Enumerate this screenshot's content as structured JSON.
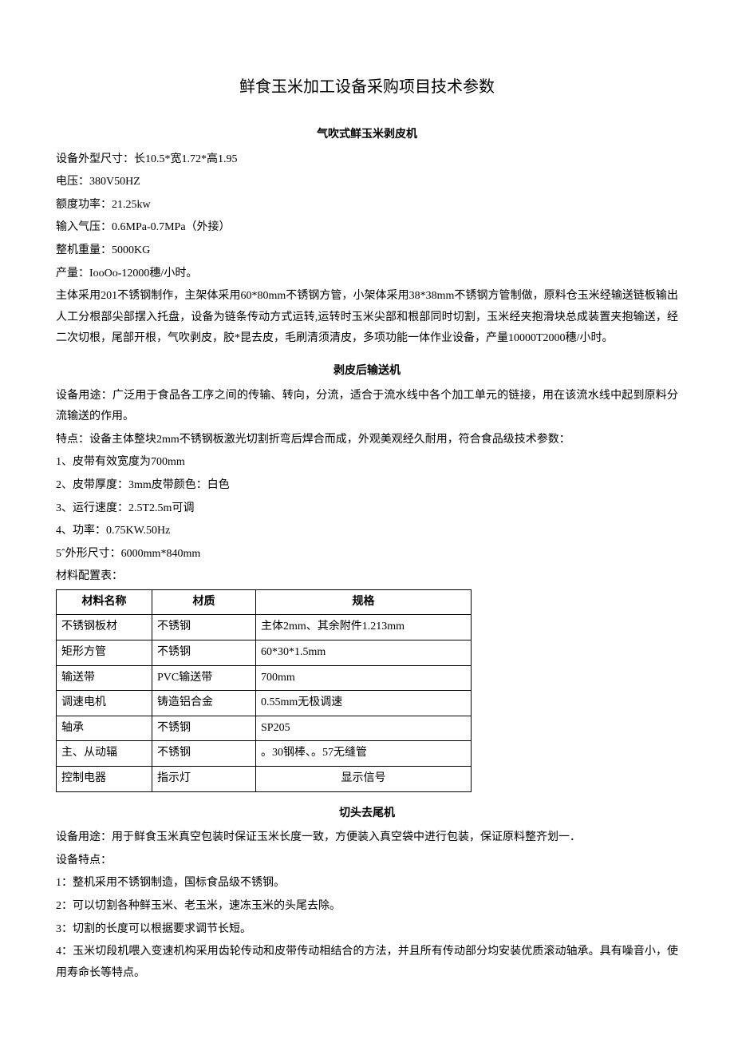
{
  "title": "鲜食玉米加工设备采购项目技术参数",
  "section1": {
    "heading": "气吹式鲜玉米剥皮机",
    "lines": {
      "l1": "设备外型尺寸：长10.5*宽1.72*高1.95",
      "l2": "电压：380V50HZ",
      "l3": "额度功率：21.25kw",
      "l4": "输入气压：0.6MPa-0.7MPa（外接）",
      "l5": "整机重量：5000KG",
      "l6": "产量：IooOo-12000穗/小时。"
    },
    "desc": "主体采用201不锈钢制作，主架体采用60*80mm不锈钢方管，小架体采用38*38mm不锈钢方管制做，原料仓玉米经输送链板输出人工分根部尖部摆入托盘，设备为链条传动方式运转,运转时玉米尖部和根部同时切割，玉米经夹抱滑块总成装置夹抱输送，经二次切根，尾部开根，气吹剥皮，胶*昆去皮，毛刷清须清皮，多项功能一体作业设备，产量10000T2000穗/小时。"
  },
  "section2": {
    "heading": "剥皮后输送机",
    "use": "设备用途：广泛用于食品各工序之间的传输、转向，分流，适合于流水线中各个加工单元的链接，用在该流水线中起到原料分流输送的作用。",
    "feat": "特点：设备主体整块2mm不锈钢板激光切割折弯后焊合而成，外观美观经久耐用，符合食品级技术参数：",
    "items": {
      "i1": "1、皮带有效宽度为700mm",
      "i2": "2、皮带厚度：3mm皮带颜色：白色",
      "i3": "3、运行速度：2.5T2.5m可调",
      "i4": "4、功率：0.75KW.50Hz",
      "i5": "5ˆ外形尺寸：6000mm*840mm"
    },
    "table_label": "材料配置表：",
    "table": {
      "headers": {
        "h1": "材料名称",
        "h2": "材质",
        "h3": "规格"
      },
      "rows": [
        {
          "c1": "不锈钢板材",
          "c2": "不锈钢",
          "c3": "主体2mm、其余附件1.213mm"
        },
        {
          "c1": "矩形方管",
          "c2": "不锈钢",
          "c3": "60*30*1.5mm"
        },
        {
          "c1": "输送带",
          "c2": "PVC输送带",
          "c3": "700mm"
        },
        {
          "c1": "调速电机",
          "c2": "铸造铝合金",
          "c3": "0.55mm无极调速"
        },
        {
          "c1": "轴承",
          "c2": "不锈钢",
          "c3": "SP205"
        },
        {
          "c1": "主、从动辐",
          "c2": "不锈钢",
          "c3": "。30钢棒、。57无缝管"
        },
        {
          "c1": "控制电器",
          "c2": "指示灯",
          "c3": "显示信号"
        }
      ]
    }
  },
  "section3": {
    "heading": "切头去尾机",
    "use": "设备用途：用于鲜食玉米真空包装时保证玉米长度一致，方便装入真空袋中进行包装，保证原料整齐划一．",
    "feat_label": "设备特点：",
    "items": {
      "i1": "1：整机采用不锈钢制造，国标食品级不锈钢。",
      "i2": "2：可以切割各种鲜玉米、老玉米，速冻玉米的头尾去除。",
      "i3": "3：切割的长度可以根据要求调节长短。",
      "i4": "4：玉米切段机喂入变速机构采用齿轮传动和皮带传动相结合的方法，并且所有传动部分均安装优质滚动轴承。具有噪音小，使用寿命长等特点。"
    }
  }
}
